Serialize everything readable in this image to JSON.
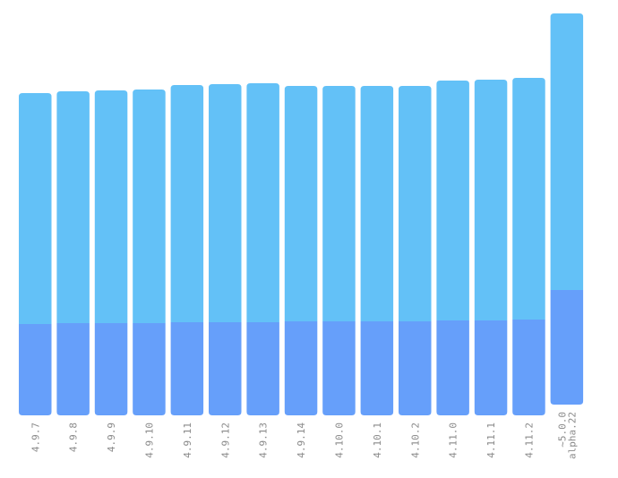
{
  "chart_data": {
    "type": "bar",
    "stacked": true,
    "categories": [
      "4.9.7",
      "4.9.8",
      "4.9.9",
      "4.9.10",
      "4.9.11",
      "4.9.12",
      "4.9.13",
      "4.9.14",
      "4.10.0",
      "4.10.1",
      "4.10.2",
      "4.11.0",
      "4.11.1",
      "4.11.2",
      "~5.0.0 alpha.22"
    ],
    "series": [
      {
        "color": "#669ffa",
        "values": [
          102,
          103,
          103,
          103,
          104,
          104,
          104,
          105,
          105,
          105,
          105,
          106,
          106,
          107,
          128
        ]
      },
      {
        "color": "#63c1f7",
        "values": [
          258,
          259,
          260,
          261,
          265,
          266,
          267,
          263,
          263,
          263,
          263,
          268,
          269,
          270,
          309
        ]
      }
    ],
    "ylim": [
      0,
      450
    ],
    "grid": false,
    "legend": "none",
    "axes_visible": false
  }
}
